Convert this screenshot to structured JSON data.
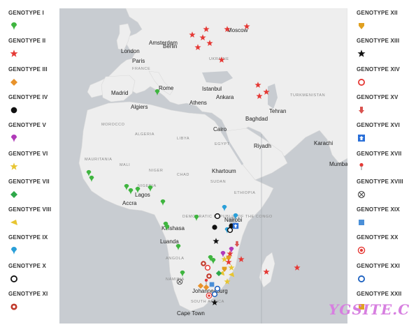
{
  "legend_left": [
    {
      "label": "GENOTYPE I",
      "symbol": "pin",
      "color": "#3fb53f"
    },
    {
      "label": "GENOTYPE II",
      "symbol": "star",
      "color": "#e53935"
    },
    {
      "label": "GENOTYPE III",
      "symbol": "diamond",
      "color": "#e8922b"
    },
    {
      "label": "GENOTYPE IV",
      "symbol": "dot",
      "color": "#111111"
    },
    {
      "label": "GENOTYPE V",
      "symbol": "pin",
      "color": "#b03ab8"
    },
    {
      "label": "GENOTYPE VI",
      "symbol": "star",
      "color": "#e8c531"
    },
    {
      "label": "GENOTYPE VII",
      "symbol": "diamond",
      "color": "#2ea84a"
    },
    {
      "label": "GENOTYPE VIII",
      "symbol": "arrow",
      "color": "#e8c531"
    },
    {
      "label": "GENOTYPE IX",
      "symbol": "pin",
      "color": "#2a9fd8"
    },
    {
      "label": "GENOTYPE X",
      "symbol": "ring",
      "color": "#111111"
    },
    {
      "label": "GENOTYPE XI",
      "symbol": "pin-ring",
      "color": "#c0392b"
    }
  ],
  "legend_right": [
    {
      "label": "GENOTYPE XII",
      "symbol": "shield",
      "color": "#e0a020"
    },
    {
      "label": "GENOTYPE XIII",
      "symbol": "star",
      "color": "#111111"
    },
    {
      "label": "GENOTYPE XIV",
      "symbol": "ring",
      "color": "#e53935"
    },
    {
      "label": "GENOTYPE XV",
      "symbol": "arrow-down",
      "color": "#d9534f"
    },
    {
      "label": "GENOTYPE XVI",
      "symbol": "arrow-box",
      "color": "#2a6fd8"
    },
    {
      "label": "GENOTYPE XVII",
      "symbol": "needle",
      "color": "#e53935"
    },
    {
      "label": "GENOTYPE XVIII",
      "symbol": "cross-ring",
      "color": "#555555"
    },
    {
      "label": "GENOTYPE XIX",
      "symbol": "square",
      "color": "#4a8fd8"
    },
    {
      "label": "GENOTYPE XX",
      "symbol": "ring-fill",
      "color": "#e53935"
    },
    {
      "label": "GENOTYPE XXI",
      "symbol": "ring",
      "color": "#1a5fbf"
    },
    {
      "label": "GENOTYPE XXII",
      "symbol": "square",
      "color": "#e0a020"
    }
  ],
  "places": [
    {
      "name": "Moscow",
      "id": "moscow"
    },
    {
      "name": "Amsterdam",
      "id": "amsterdam"
    },
    {
      "name": "Berlin",
      "id": "berlin"
    },
    {
      "name": "London",
      "id": "london"
    },
    {
      "name": "Paris",
      "id": "paris"
    },
    {
      "name": "Madrid",
      "id": "madrid"
    },
    {
      "name": "Rome",
      "id": "rome"
    },
    {
      "name": "Algiers",
      "id": "algiers"
    },
    {
      "name": "Istanbul",
      "id": "istanbul"
    },
    {
      "name": "Ankara",
      "id": "ankara"
    },
    {
      "name": "Athens",
      "id": "athens"
    },
    {
      "name": "Tehran",
      "id": "tehran"
    },
    {
      "name": "Baghdad",
      "id": "baghdad"
    },
    {
      "name": "Cairo",
      "id": "cairo"
    },
    {
      "name": "Riyadh",
      "id": "riyadh"
    },
    {
      "name": "Karachi",
      "id": "karachi"
    },
    {
      "name": "Mumbai",
      "id": "mumbai"
    },
    {
      "name": "Khartoum",
      "id": "khartoum"
    },
    {
      "name": "Accra",
      "id": "accra"
    },
    {
      "name": "Lagos",
      "id": "lagos"
    },
    {
      "name": "Nairobi",
      "id": "nairobi"
    },
    {
      "name": "Kinshasa",
      "id": "kinshasa"
    },
    {
      "name": "Luanda",
      "id": "luanda"
    },
    {
      "name": "Johannesburg",
      "id": "johannesburg"
    },
    {
      "name": "Cape Town",
      "id": "capetown"
    }
  ],
  "countries": [
    {
      "name": "FRANCE",
      "id": "france"
    },
    {
      "name": "UKRAINE",
      "id": "ukraine"
    },
    {
      "name": "TURKMENISTAN",
      "id": "turkmenistan"
    },
    {
      "name": "MOROCCO",
      "id": "morocco"
    },
    {
      "name": "ALGERIA",
      "id": "algeria"
    },
    {
      "name": "LIBYA",
      "id": "libya"
    },
    {
      "name": "EGYPT",
      "id": "egypt"
    },
    {
      "name": "MAURITANIA",
      "id": "mauritania"
    },
    {
      "name": "MALI",
      "id": "mali"
    },
    {
      "name": "NIGER",
      "id": "niger"
    },
    {
      "name": "CHAD",
      "id": "chad"
    },
    {
      "name": "SUDAN",
      "id": "sudan"
    },
    {
      "name": "ETHIOPIA",
      "id": "ethiopia"
    },
    {
      "name": "NIGERIA",
      "id": "nigeria"
    },
    {
      "name": "DEMOCRATIC REPUBLIC OF THE CONGO",
      "id": "drc"
    },
    {
      "name": "ANGOLA",
      "id": "angola"
    },
    {
      "name": "NAMIBIA",
      "id": "namibia"
    },
    {
      "name": "SOUTH AFRICA",
      "id": "southafrica"
    }
  ],
  "watermark": "YGSITE.CN"
}
